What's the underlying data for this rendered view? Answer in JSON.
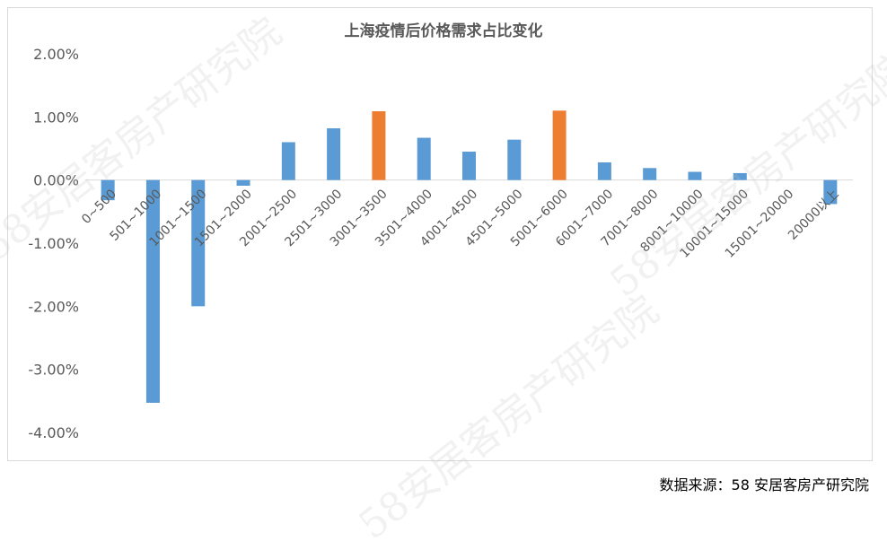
{
  "chart_data": {
    "type": "bar",
    "title": "上海疫情后价格需求占比变化",
    "xlabel": "",
    "ylabel": "",
    "ylim": [
      -4.0,
      2.0
    ],
    "yticks": [
      2.0,
      1.0,
      0.0,
      -1.0,
      -2.0,
      -3.0,
      -4.0
    ],
    "ytick_labels": [
      "2.00%",
      "1.00%",
      "0.00%",
      "-1.00%",
      "-2.00%",
      "-3.00%",
      "-4.00%"
    ],
    "categories": [
      "0~500",
      "501~1000",
      "1001~1500",
      "1501~2000",
      "2001~2500",
      "2501~3000",
      "3001~3500",
      "3501~4000",
      "4001~4500",
      "4501~5000",
      "5001~6000",
      "6001~7000",
      "7001~8000",
      "8001~10000",
      "10001~15000",
      "15001~20000",
      "20000以上"
    ],
    "values": [
      -0.32,
      -3.53,
      -2.0,
      -0.09,
      0.6,
      0.82,
      1.09,
      0.67,
      0.45,
      0.64,
      1.1,
      0.28,
      0.19,
      0.13,
      0.11,
      0.0,
      -0.38
    ],
    "highlight_indices": [
      6,
      10
    ],
    "colors": {
      "default": "#5b9bd5",
      "highlight": "#ed7d31",
      "grid": "#d9d9d9",
      "tick_text": "#595959"
    },
    "grid": false,
    "legend": "none"
  },
  "source": "数据来源：58 安居客房产研究院",
  "watermark": "58安居客房产研究院"
}
